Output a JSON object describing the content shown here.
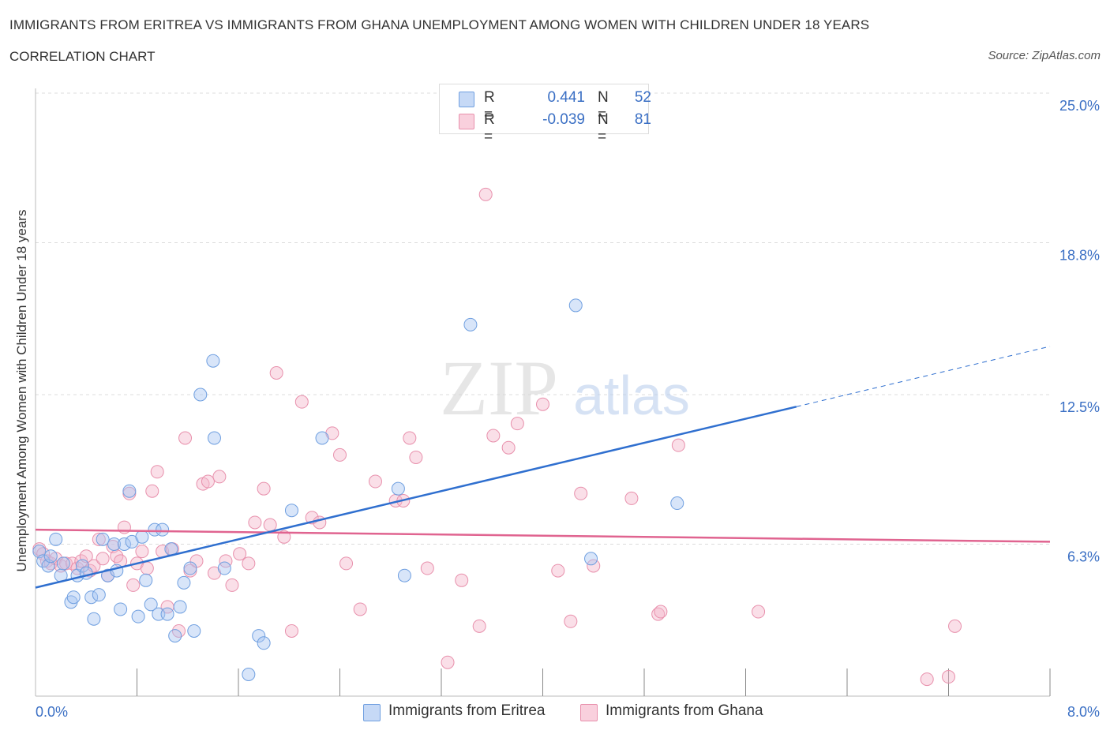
{
  "header": {
    "title": "IMMIGRANTS FROM ERITREA VS IMMIGRANTS FROM GHANA UNEMPLOYMENT AMONG WOMEN WITH CHILDREN UNDER 18 YEARS",
    "subtitle": "CORRELATION CHART",
    "source": "Source: ZipAtlas.com"
  },
  "watermark": {
    "text_zip": "ZIP",
    "text_atlas": "atlas"
  },
  "legend": {
    "rows": [
      {
        "r_label": "R =",
        "r_value": "0.441",
        "n_label": "N =",
        "n_value": "52",
        "color": "#a9c6f2"
      },
      {
        "r_label": "R =",
        "r_value": "-0.039",
        "n_label": "N =",
        "n_value": "81",
        "color": "#f4b8cb"
      }
    ]
  },
  "bottom_legend": {
    "eritrea": "Immigrants from Eritrea",
    "ghana": "Immigrants from Ghana"
  },
  "colors": {
    "eritrea_fill": "#a9c6f2",
    "eritrea_stroke": "#6f9fe0",
    "eritrea_line": "#2f6fcf",
    "ghana_fill": "#f4b8cb",
    "ghana_stroke": "#e890ac",
    "ghana_line": "#e06490",
    "axis_label": "#3a6fc4",
    "grid": "#dcdcdc"
  },
  "chart_data": {
    "type": "scatter",
    "title": "IMMIGRANTS FROM ERITREA VS IMMIGRANTS FROM GHANA UNEMPLOYMENT AMONG WOMEN WITH CHILDREN UNDER 18 YEARS",
    "xlabel": "",
    "ylabel": "Unemployment Among Women with Children Under 18 years",
    "xlim": [
      0,
      8
    ],
    "ylim": [
      0,
      25
    ],
    "x_tick_labels": [
      {
        "value": 0,
        "label": "0.0%"
      },
      {
        "value": 8,
        "label": "8.0%"
      }
    ],
    "y_tick_labels": [
      {
        "value": 6.3,
        "label": "6.3%"
      },
      {
        "value": 12.5,
        "label": "12.5%"
      },
      {
        "value": 18.8,
        "label": "18.8%"
      },
      {
        "value": 25.0,
        "label": "25.0%"
      }
    ],
    "grid": true,
    "legend_position": "top-center",
    "series": [
      {
        "name": "Immigrants from Eritrea",
        "trend": {
          "x": [
            0.0,
            6.0
          ],
          "y": [
            4.5,
            12.0
          ],
          "dashed_to": [
            8.0,
            14.5
          ]
        },
        "points": [
          [
            0.03,
            6.0
          ],
          [
            0.06,
            5.6
          ],
          [
            0.1,
            5.4
          ],
          [
            0.12,
            5.8
          ],
          [
            0.16,
            6.5
          ],
          [
            0.2,
            5.0
          ],
          [
            0.22,
            5.5
          ],
          [
            0.28,
            3.9
          ],
          [
            0.3,
            4.1
          ],
          [
            0.33,
            5.0
          ],
          [
            0.37,
            5.4
          ],
          [
            0.4,
            5.1
          ],
          [
            0.44,
            4.1
          ],
          [
            0.46,
            3.2
          ],
          [
            0.5,
            4.2
          ],
          [
            0.53,
            6.5
          ],
          [
            0.57,
            5.0
          ],
          [
            0.62,
            6.3
          ],
          [
            0.64,
            5.2
          ],
          [
            0.67,
            3.6
          ],
          [
            0.7,
            6.3
          ],
          [
            0.74,
            8.5
          ],
          [
            0.76,
            6.4
          ],
          [
            0.81,
            3.3
          ],
          [
            0.84,
            6.6
          ],
          [
            0.87,
            4.8
          ],
          [
            0.91,
            3.8
          ],
          [
            0.94,
            6.9
          ],
          [
            0.97,
            3.4
          ],
          [
            1.0,
            6.9
          ],
          [
            1.04,
            3.4
          ],
          [
            1.07,
            6.1
          ],
          [
            1.1,
            2.5
          ],
          [
            1.14,
            3.7
          ],
          [
            1.17,
            4.7
          ],
          [
            1.22,
            5.3
          ],
          [
            1.25,
            2.7
          ],
          [
            1.3,
            12.5
          ],
          [
            1.41,
            10.7
          ],
          [
            1.4,
            13.9
          ],
          [
            1.49,
            5.3
          ],
          [
            1.76,
            2.5
          ],
          [
            1.8,
            2.2
          ],
          [
            1.68,
            0.9
          ],
          [
            2.02,
            7.7
          ],
          [
            2.26,
            10.7
          ],
          [
            2.86,
            8.6
          ],
          [
            2.91,
            5.0
          ],
          [
            3.43,
            15.4
          ],
          [
            4.26,
            16.2
          ],
          [
            4.38,
            5.7
          ],
          [
            5.06,
            8.0
          ]
        ]
      },
      {
        "name": "Immigrants from Ghana",
        "trend": {
          "x": [
            0.0,
            8.0
          ],
          "y": [
            6.9,
            6.4
          ]
        },
        "points": [
          [
            0.03,
            6.1
          ],
          [
            0.06,
            5.9
          ],
          [
            0.09,
            5.6
          ],
          [
            0.12,
            5.5
          ],
          [
            0.16,
            5.7
          ],
          [
            0.2,
            5.4
          ],
          [
            0.24,
            5.5
          ],
          [
            0.29,
            5.5
          ],
          [
            0.33,
            5.3
          ],
          [
            0.36,
            5.6
          ],
          [
            0.4,
            5.8
          ],
          [
            0.43,
            5.2
          ],
          [
            0.46,
            5.4
          ],
          [
            0.5,
            6.5
          ],
          [
            0.53,
            5.7
          ],
          [
            0.57,
            5.0
          ],
          [
            0.61,
            6.2
          ],
          [
            0.64,
            5.8
          ],
          [
            0.67,
            5.6
          ],
          [
            0.7,
            7.0
          ],
          [
            0.74,
            8.4
          ],
          [
            0.77,
            4.6
          ],
          [
            0.8,
            5.5
          ],
          [
            0.84,
            6.0
          ],
          [
            0.88,
            5.3
          ],
          [
            0.92,
            8.5
          ],
          [
            0.96,
            9.3
          ],
          [
            1.0,
            6.0
          ],
          [
            1.04,
            3.7
          ],
          [
            1.08,
            6.1
          ],
          [
            1.13,
            2.7
          ],
          [
            1.18,
            10.7
          ],
          [
            1.22,
            5.2
          ],
          [
            1.27,
            5.6
          ],
          [
            1.32,
            8.8
          ],
          [
            1.36,
            8.9
          ],
          [
            1.41,
            5.1
          ],
          [
            1.45,
            9.1
          ],
          [
            1.5,
            5.6
          ],
          [
            1.55,
            4.6
          ],
          [
            1.61,
            5.9
          ],
          [
            1.68,
            5.5
          ],
          [
            1.73,
            7.2
          ],
          [
            1.8,
            8.6
          ],
          [
            1.85,
            7.1
          ],
          [
            1.9,
            13.4
          ],
          [
            1.96,
            6.6
          ],
          [
            2.02,
            2.7
          ],
          [
            2.1,
            12.2
          ],
          [
            2.18,
            7.4
          ],
          [
            2.24,
            7.2
          ],
          [
            2.34,
            10.9
          ],
          [
            2.4,
            10.0
          ],
          [
            2.45,
            5.5
          ],
          [
            2.56,
            3.6
          ],
          [
            2.68,
            8.9
          ],
          [
            2.84,
            8.1
          ],
          [
            2.9,
            8.1
          ],
          [
            2.95,
            10.7
          ],
          [
            3.0,
            9.9
          ],
          [
            3.09,
            5.3
          ],
          [
            3.25,
            1.4
          ],
          [
            3.36,
            4.8
          ],
          [
            3.5,
            2.9
          ],
          [
            3.55,
            20.8
          ],
          [
            3.61,
            10.8
          ],
          [
            3.73,
            10.3
          ],
          [
            3.8,
            11.3
          ],
          [
            4.0,
            12.1
          ],
          [
            4.12,
            5.2
          ],
          [
            4.22,
            3.1
          ],
          [
            4.3,
            8.4
          ],
          [
            4.4,
            5.4
          ],
          [
            4.7,
            8.2
          ],
          [
            4.91,
            3.4
          ],
          [
            4.93,
            3.5
          ],
          [
            5.07,
            10.4
          ],
          [
            5.7,
            3.5
          ],
          [
            7.25,
            2.9
          ],
          [
            7.03,
            0.7
          ],
          [
            7.2,
            0.8
          ]
        ]
      }
    ]
  }
}
